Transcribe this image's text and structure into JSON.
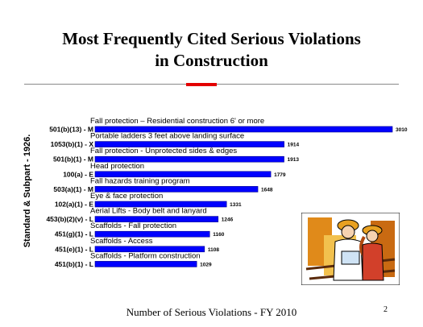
{
  "slide": {
    "title_line1": "Most Frequently Cited Serious Violations",
    "title_line2": "in Construction",
    "y_axis_label": "Standard & Subpart - 1926.",
    "footer": "Number of Serious Violations - FY 2010",
    "page_number": "2"
  },
  "colors": {
    "bar": "#0000ff",
    "bar_edge": "#00008b",
    "accent": "#e30000"
  },
  "chart_data": {
    "type": "bar",
    "orientation": "horizontal",
    "ylabel": "Standard & Subpart - 1926.",
    "xlabel": "Number of Serious Violations - FY 2010",
    "categories": [
      "501(b)(13) - M",
      "1053(b)(1) - X",
      "501(b)(1) - M",
      "100(a) - E",
      "503(a)(1) - M",
      "102(a)(1) - E",
      "453(b)(2)(v) - L",
      "451(g)(1) - L",
      "451(e)(1) - L",
      "451(b)(1) - L"
    ],
    "descriptions": [
      "Fall protection – Residential construction 6' or more",
      "Portable ladders 3 feet above landing surface",
      "Fall protection - Unprotected sides & edges",
      "Head protection",
      "Fall hazards training program",
      "Eye & face protection",
      "Aerial Lifts - Body belt and lanyard",
      "Scaffolds - Fall protection",
      "Scaffolds - Access",
      "Scaffolds - Platform construction"
    ],
    "values": [
      3010,
      1914,
      1913,
      1779,
      1648,
      1331,
      1246,
      1160,
      1108,
      1029
    ],
    "data_labels": [
      "3010",
      "1914",
      "1913",
      "1779",
      "1648",
      "1331",
      "1246",
      "1160",
      "1108",
      "1029"
    ],
    "xlim": [
      0,
      3010
    ],
    "grid": false,
    "legend": "none"
  },
  "clipart": {
    "icon": "construction-workers-icon"
  }
}
